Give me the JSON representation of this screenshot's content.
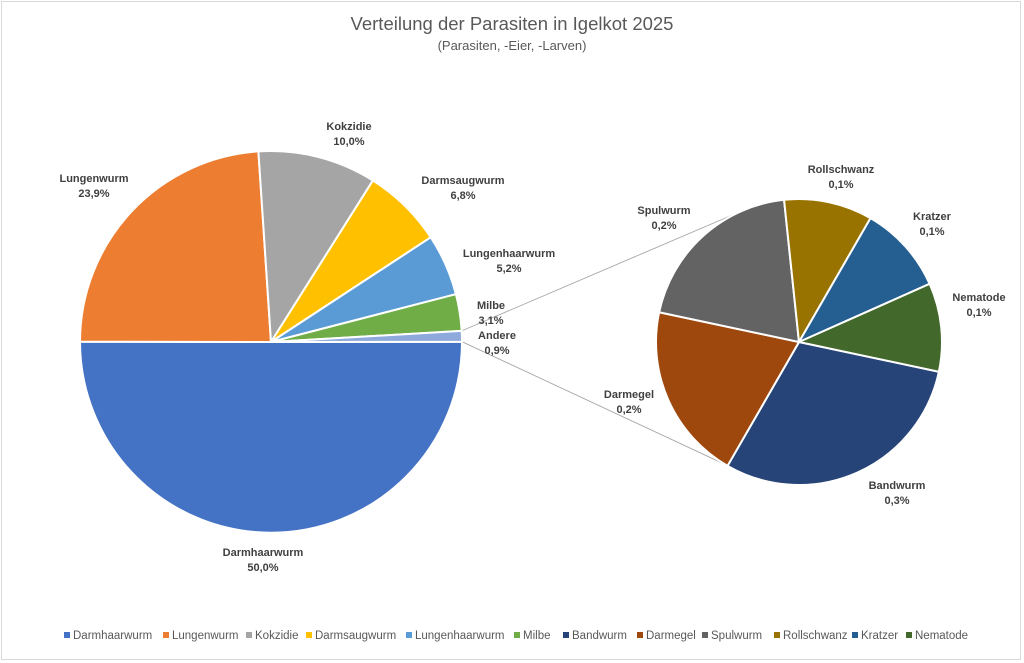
{
  "chart_data": {
    "type": "pie",
    "title": "Verteilung der Parasiten in Igelkot 2025",
    "subtitle": "(Parasiten, -Eier, -Larven)",
    "main_pie": [
      {
        "name": "Darmhaarwurm",
        "value": 50.0,
        "label": "50,0%",
        "color": "#4472C4"
      },
      {
        "name": "Lungenwurm",
        "value": 23.9,
        "label": "23,9%",
        "color": "#ED7D31"
      },
      {
        "name": "Kokzidie",
        "value": 10.0,
        "label": "10,0%",
        "color": "#A5A5A5"
      },
      {
        "name": "Darmsaugwurm",
        "value": 6.8,
        "label": "6,8%",
        "color": "#FFC000"
      },
      {
        "name": "Lungenhaarwurm",
        "value": 5.2,
        "label": "5,2%",
        "color": "#5B9BD5"
      },
      {
        "name": "Milbe",
        "value": 3.1,
        "label": "3,1%",
        "color": "#70AD47"
      },
      {
        "name": "Andere",
        "value": 0.9,
        "label": "0,9%",
        "color": "#8EA9DB"
      }
    ],
    "secondary_pie": [
      {
        "name": "Bandwurm",
        "value": 0.3,
        "label": "0,3%",
        "color": "#264478"
      },
      {
        "name": "Darmegel",
        "value": 0.2,
        "label": "0,2%",
        "color": "#9E480E"
      },
      {
        "name": "Spulwurm",
        "value": 0.2,
        "label": "0,2%",
        "color": "#636363"
      },
      {
        "name": "Rollschwanz",
        "value": 0.1,
        "label": "0,1%",
        "color": "#997300"
      },
      {
        "name": "Kratzer",
        "value": 0.1,
        "label": "0,1%",
        "color": "#255E91"
      },
      {
        "name": "Nematode",
        "value": 0.1,
        "label": "0,1%",
        "color": "#43682B"
      }
    ],
    "legend": {
      "position": "bottom",
      "entries": [
        {
          "name": "Darmhaarwurm",
          "color": "#4472C4"
        },
        {
          "name": "Lungenwurm",
          "color": "#ED7D31"
        },
        {
          "name": "Kokzidie",
          "color": "#A5A5A5"
        },
        {
          "name": "Darmsaugwurm",
          "color": "#FFC000"
        },
        {
          "name": "Lungenhaarwurm",
          "color": "#5B9BD5"
        },
        {
          "name": "Milbe",
          "color": "#70AD47"
        },
        {
          "name": "Bandwurm",
          "color": "#264478"
        },
        {
          "name": "Darmegel",
          "color": "#9E480E"
        },
        {
          "name": "Spulwurm",
          "color": "#636363"
        },
        {
          "name": "Rollschwanz",
          "color": "#997300"
        },
        {
          "name": "Kratzer",
          "color": "#255E91"
        },
        {
          "name": "Nematode",
          "color": "#43682B"
        }
      ]
    }
  }
}
